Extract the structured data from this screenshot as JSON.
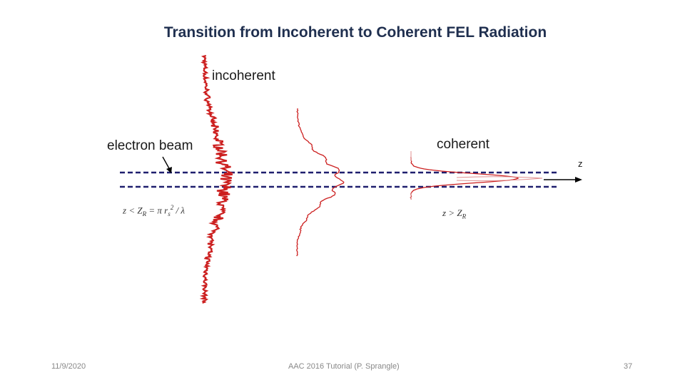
{
  "slide": {
    "title": "Transition from Incoherent to Coherent FEL Radiation",
    "footer": {
      "date": "11/9/2020",
      "center": "AAC 2016 Tutorial (P. Sprangle)",
      "page": "37"
    }
  },
  "diagram": {
    "labels": {
      "incoherent": "incoherent",
      "electron_beam": "electron beam",
      "coherent": "coherent",
      "axis": "z"
    },
    "equations": {
      "left": {
        "lhs": "z",
        "op": "<",
        "rhs_var": "Z",
        "rhs_sub": "R",
        "eq": "=",
        "pi": "π",
        "r": "r",
        "r_sub": "s",
        "r_sup": "2",
        "div": "/",
        "lambda": "λ"
      },
      "right": {
        "lhs": "z",
        "op": ">",
        "rhs_var": "Z",
        "rhs_sub": "R"
      }
    },
    "colors": {
      "beam": "#1f1f6e",
      "profile": "#cc1f1f",
      "arrow": "#000000"
    }
  }
}
